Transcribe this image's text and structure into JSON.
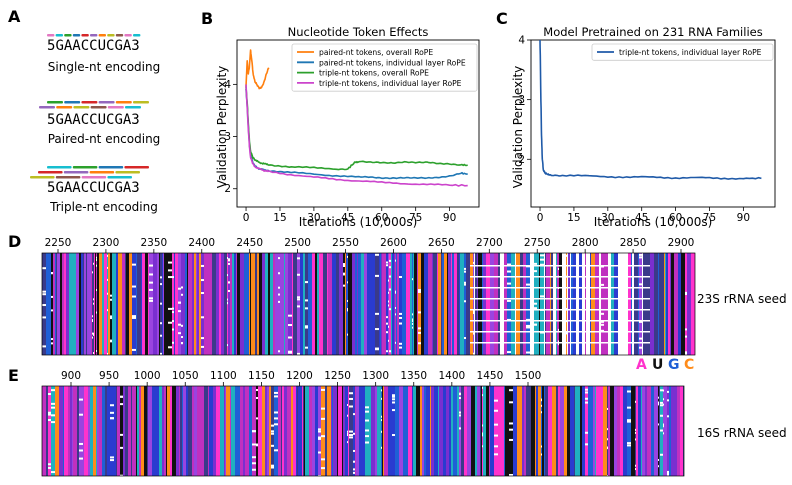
{
  "panel_labels": [
    "A",
    "B",
    "C",
    "D",
    "E"
  ],
  "panel_a": {
    "sequence_prefix": "5",
    "sequence_body": "GAACCUCGA",
    "sequence_suffix": "3",
    "encodings": [
      "Single-nt encoding",
      "Paired-nt encoding",
      "Triple-nt encoding"
    ],
    "token_colors": [
      "#e377c2",
      "#17becf",
      "#2ca02c",
      "#1f77b4",
      "#d62728",
      "#9467bd",
      "#ff7f0e",
      "#bcbd22",
      "#8c564b"
    ]
  },
  "chart_data": [
    {
      "type": "line",
      "title": "Nucleotide Token Effects",
      "xlabel": "Iterations (10,000s)",
      "ylabel": "Validation Perplexity",
      "xticks": [
        0,
        15,
        30,
        45,
        60,
        75,
        90
      ],
      "yticks": [
        2,
        3,
        4
      ],
      "xlim": [
        -4,
        103
      ],
      "ylim": [
        1.65,
        4.85
      ],
      "legend_position": "top-right",
      "series": [
        {
          "name": "paired-nt tokens, overall RoPE",
          "color": "#ff7f0e",
          "x": [
            0,
            0.5,
            1,
            1.5,
            2,
            2.5,
            3,
            3.5,
            4,
            5,
            6,
            7,
            8,
            9,
            10
          ],
          "y": [
            3.95,
            4.45,
            4.2,
            4.35,
            4.65,
            4.48,
            4.25,
            4.12,
            4.05,
            3.98,
            3.92,
            3.95,
            4.05,
            4.2,
            4.32
          ]
        },
        {
          "name": "paired-nt tokens, individual layer RoPE",
          "color": "#1f77b4",
          "x": [
            0,
            0.5,
            1,
            1.5,
            2,
            3,
            4,
            6,
            8,
            10,
            15,
            20,
            30,
            40,
            50,
            55,
            60,
            65,
            70,
            75,
            80,
            85,
            90,
            95,
            98
          ],
          "y": [
            3.9,
            3.6,
            3.2,
            2.85,
            2.65,
            2.5,
            2.43,
            2.38,
            2.36,
            2.35,
            2.33,
            2.31,
            2.28,
            2.25,
            2.22,
            2.22,
            2.21,
            2.21,
            2.21,
            2.2,
            2.2,
            2.22,
            2.25,
            2.3,
            2.28
          ]
        },
        {
          "name": "triple-nt tokens, overall RoPE",
          "color": "#2ca02c",
          "x": [
            0,
            0.5,
            1,
            1.5,
            2,
            3,
            4,
            6,
            8,
            10,
            15,
            20,
            30,
            40,
            45,
            48,
            50,
            55,
            60,
            65,
            70,
            75,
            80,
            85,
            90,
            95,
            98
          ],
          "y": [
            3.95,
            3.65,
            3.25,
            2.9,
            2.72,
            2.6,
            2.55,
            2.5,
            2.48,
            2.46,
            2.44,
            2.42,
            2.4,
            2.38,
            2.38,
            2.5,
            2.52,
            2.5,
            2.5,
            2.5,
            2.52,
            2.5,
            2.5,
            2.48,
            2.48,
            2.46,
            2.45
          ]
        },
        {
          "name": "triple-nt tokens, individual layer RoPE",
          "color": "#cc44cc",
          "x": [
            0,
            0.5,
            1,
            1.5,
            2,
            3,
            4,
            6,
            8,
            10,
            15,
            20,
            30,
            40,
            50,
            60,
            70,
            80,
            90,
            98
          ],
          "y": [
            4.0,
            3.55,
            3.15,
            2.8,
            2.6,
            2.48,
            2.42,
            2.38,
            2.35,
            2.33,
            2.3,
            2.27,
            2.22,
            2.18,
            2.15,
            2.12,
            2.1,
            2.08,
            2.07,
            2.06
          ]
        }
      ]
    },
    {
      "type": "line",
      "title": "Model Pretrained on 231 RNA Families",
      "xlabel": "Iterations (10,000s)",
      "ylabel": "Validation Perplexity",
      "xticks": [
        0,
        15,
        30,
        45,
        60,
        75,
        90
      ],
      "yticks": [
        2,
        3,
        4
      ],
      "xlim": [
        -4,
        104
      ],
      "ylim": [
        1.2,
        4.0
      ],
      "legend_position": "top-right",
      "series": [
        {
          "name": "triple-nt tokens, individual layer RoPE",
          "color": "#1f5aa8",
          "x": [
            0,
            0.3,
            0.6,
            1,
            1.5,
            2,
            3,
            5,
            10,
            20,
            30,
            40,
            50,
            60,
            70,
            80,
            90,
            98
          ],
          "y": [
            4.0,
            3.2,
            2.5,
            2.0,
            1.82,
            1.78,
            1.75,
            1.74,
            1.73,
            1.72,
            1.71,
            1.7,
            1.7,
            1.69,
            1.69,
            1.68,
            1.68,
            1.68
          ]
        }
      ]
    }
  ],
  "panel_d": {
    "ticks": [
      2250,
      2300,
      2350,
      2400,
      2450,
      2500,
      2550,
      2600,
      2650,
      2700,
      2750,
      2800,
      2850,
      2900
    ],
    "label": "23S rRNA seed"
  },
  "panel_e": {
    "ticks": [
      900,
      950,
      1000,
      1050,
      1100,
      1150,
      1200,
      1250,
      1300,
      1350,
      1400,
      1450,
      1500
    ],
    "label": "16S rRNA seed"
  },
  "nucleotide_legend": [
    {
      "letter": "A",
      "color": "#ff33cc"
    },
    {
      "letter": "U",
      "color": "#111111"
    },
    {
      "letter": "G",
      "color": "#1f5fd6"
    },
    {
      "letter": "C",
      "color": "#ff8c1a"
    }
  ],
  "alignment_palette": [
    "#7a2fd0",
    "#1f5fd6",
    "#ff33cc",
    "#111111",
    "#ff8c1a",
    "#9a44e0",
    "#2a3bd0",
    "#c030c0",
    "#20b0c0",
    "#3a3a8a"
  ]
}
